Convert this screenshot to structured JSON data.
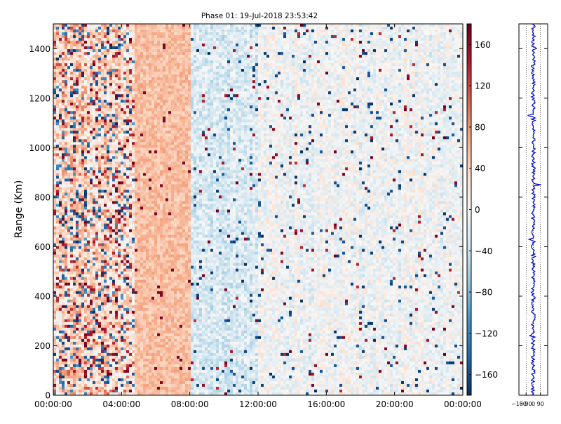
{
  "chart_data": [
    {
      "type": "heatmap",
      "title": "Phase 01: 19-Jul-2018 23:53:42",
      "xlabel": "",
      "ylabel": "Range (Km)",
      "x_tick_labels": [
        "00:00:00",
        "04:00:00",
        "08:00:00",
        "12:00:00",
        "16:00:00",
        "20:00:00",
        "00:00:00"
      ],
      "x_tick_hours": [
        0,
        4,
        8,
        12,
        16,
        20,
        24
      ],
      "xlim_hours": [
        0,
        24
      ],
      "y_ticks": [
        0,
        200,
        400,
        600,
        800,
        1000,
        1200,
        1400
      ],
      "ylim": [
        0,
        1500
      ],
      "grid": false,
      "colormap": "RdBu_r",
      "colorbar": {
        "ticks": [
          160,
          120,
          80,
          40,
          0,
          -40,
          -80,
          -120,
          -160
        ],
        "tick_labels": [
          "160",
          "120",
          "80",
          "40",
          "0",
          "−40",
          "−80",
          "−120",
          "−160"
        ],
        "range": [
          -180,
          180
        ]
      },
      "bands": [
        {
          "x_start_hours": 0,
          "x_end_hours": 4.8,
          "mean_value": 35,
          "description_level": "mixed strong red and blue"
        },
        {
          "x_start_hours": 4.8,
          "x_end_hours": 8.0,
          "mean_value": 55,
          "description_level": "uniform light red"
        },
        {
          "x_start_hours": 8.0,
          "x_end_hours": 12.0,
          "mean_value": -25,
          "description_level": "light blue"
        },
        {
          "x_start_hours": 12.0,
          "x_end_hours": 24.0,
          "mean_value": -5,
          "description_level": "near white with scattered points"
        }
      ]
    },
    {
      "type": "line",
      "title": "",
      "xlabel": "",
      "ylabel": "",
      "x_tick_labels": [
        "−180",
        "−90",
        "0",
        "90"
      ],
      "x_ticks": [
        -180,
        -90,
        0,
        90
      ],
      "xlim": [
        -180,
        180
      ],
      "ylim": [
        0,
        1500
      ],
      "grid": "vertical dotted at -90, 0, 90",
      "line_color": "#0000cc",
      "mean_value": 0,
      "spread": 25,
      "spikes": [
        {
          "range_km": 1130,
          "value": -70
        },
        {
          "range_km": 850,
          "value": 95
        },
        {
          "range_km": 630,
          "value": -55
        },
        {
          "range_km": 1400,
          "value": 40
        },
        {
          "range_km": 240,
          "value": -45
        }
      ]
    }
  ]
}
